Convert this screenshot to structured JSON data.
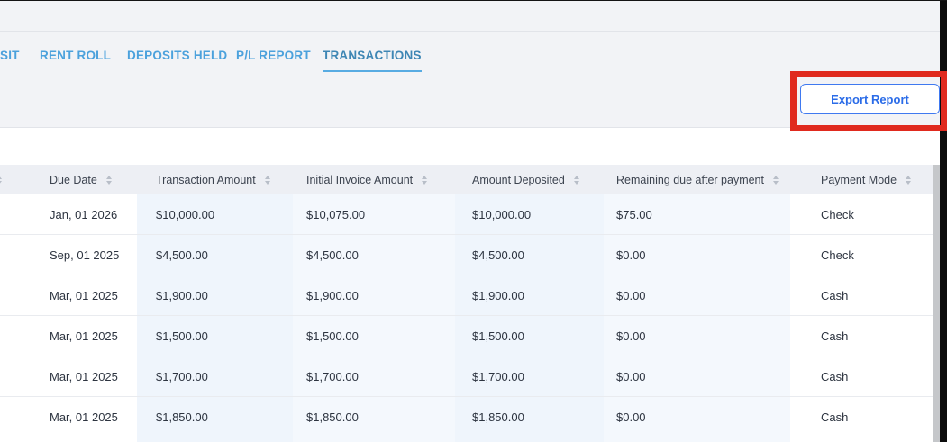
{
  "tabs": {
    "items": [
      {
        "label": "SIT",
        "active": false
      },
      {
        "label": "RENT ROLL",
        "active": false
      },
      {
        "label": "DEPOSITS HELD",
        "active": false
      },
      {
        "label": "P/L REPORT",
        "active": false
      },
      {
        "label": "TRANSACTIONS",
        "active": true
      }
    ]
  },
  "toolbar": {
    "export_label": "Export Report"
  },
  "annotation": {
    "highlight_color": "#e02a1e"
  },
  "colors": {
    "tab_blue": "#4ba1dc",
    "active_tab_blue": "#3e86b4",
    "button_blue": "#2b6ce8",
    "header_bg": "#edeff4",
    "tint_column_a": "#eff5fc",
    "tint_column_b": "#f4f8fd"
  },
  "table": {
    "columns": [
      {
        "label": ""
      },
      {
        "label": "Due Date"
      },
      {
        "label": "Transaction Amount"
      },
      {
        "label": "Initial Invoice Amount"
      },
      {
        "label": "Amount Deposited"
      },
      {
        "label": "Remaining due after payment"
      },
      {
        "label": "Payment Mode"
      }
    ],
    "rows": [
      {
        "due_date": "Jan, 01 2026",
        "transaction_amount": "$10,000.00",
        "initial_invoice_amount": "$10,075.00",
        "amount_deposited": "$10,000.00",
        "remaining_due": "$75.00",
        "payment_mode": "Check"
      },
      {
        "due_date": "Sep, 01 2025",
        "transaction_amount": "$4,500.00",
        "initial_invoice_amount": "$4,500.00",
        "amount_deposited": "$4,500.00",
        "remaining_due": "$0.00",
        "payment_mode": "Check"
      },
      {
        "due_date": "Mar, 01 2025",
        "transaction_amount": "$1,900.00",
        "initial_invoice_amount": "$1,900.00",
        "amount_deposited": "$1,900.00",
        "remaining_due": "$0.00",
        "payment_mode": "Cash"
      },
      {
        "due_date": "Mar, 01 2025",
        "transaction_amount": "$1,500.00",
        "initial_invoice_amount": "$1,500.00",
        "amount_deposited": "$1,500.00",
        "remaining_due": "$0.00",
        "payment_mode": "Cash"
      },
      {
        "due_date": "Mar, 01 2025",
        "transaction_amount": "$1,700.00",
        "initial_invoice_amount": "$1,700.00",
        "amount_deposited": "$1,700.00",
        "remaining_due": "$0.00",
        "payment_mode": "Cash"
      },
      {
        "due_date": "Mar, 01 2025",
        "transaction_amount": "$1,850.00",
        "initial_invoice_amount": "$1,850.00",
        "amount_deposited": "$1,850.00",
        "remaining_due": "$0.00",
        "payment_mode": "Cash"
      }
    ]
  }
}
